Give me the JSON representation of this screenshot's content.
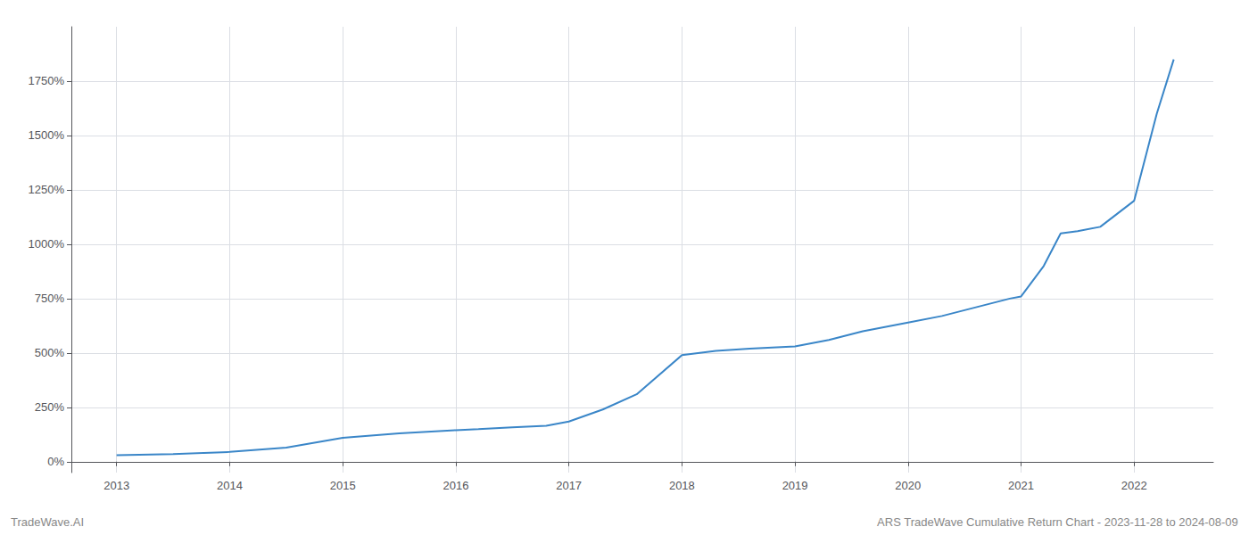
{
  "chart_data": {
    "type": "line",
    "x": [
      2013.0,
      2013.2,
      2013.5,
      2014.0,
      2014.5,
      2015.0,
      2015.5,
      2016.0,
      2016.2,
      2016.5,
      2016.8,
      2017.0,
      2017.3,
      2017.6,
      2018.0,
      2018.3,
      2018.6,
      2019.0,
      2019.3,
      2019.6,
      2020.0,
      2020.3,
      2020.6,
      2020.9,
      2021.0,
      2021.2,
      2021.35,
      2021.5,
      2021.7,
      2022.0,
      2022.2,
      2022.35
    ],
    "values": [
      30,
      32,
      35,
      45,
      65,
      110,
      130,
      145,
      150,
      158,
      165,
      185,
      240,
      310,
      490,
      510,
      520,
      530,
      560,
      600,
      640,
      670,
      710,
      750,
      760,
      900,
      1050,
      1060,
      1080,
      1200,
      1600,
      1850
    ],
    "color": "#3a86c8",
    "xlim": [
      2012.6,
      2022.7
    ],
    "xticks": [
      2013,
      2014,
      2015,
      2016,
      2017,
      2018,
      2019,
      2020,
      2021,
      2022
    ],
    "ylim": [
      -50,
      2000
    ],
    "yticks": [
      {
        "value": 0,
        "label": "0%"
      },
      {
        "value": 250,
        "label": "250%"
      },
      {
        "value": 500,
        "label": "500%"
      },
      {
        "value": 750,
        "label": "750%"
      },
      {
        "value": 1000,
        "label": "1000%"
      },
      {
        "value": 1250,
        "label": "1250%"
      },
      {
        "value": 1500,
        "label": "1500%"
      },
      {
        "value": 1750,
        "label": "1750%"
      }
    ],
    "grid": true,
    "annotations": [
      "TradeWave.AI",
      "ARS TradeWave Cumulative Return Chart - 2023-11-28 to 2024-08-09"
    ]
  }
}
